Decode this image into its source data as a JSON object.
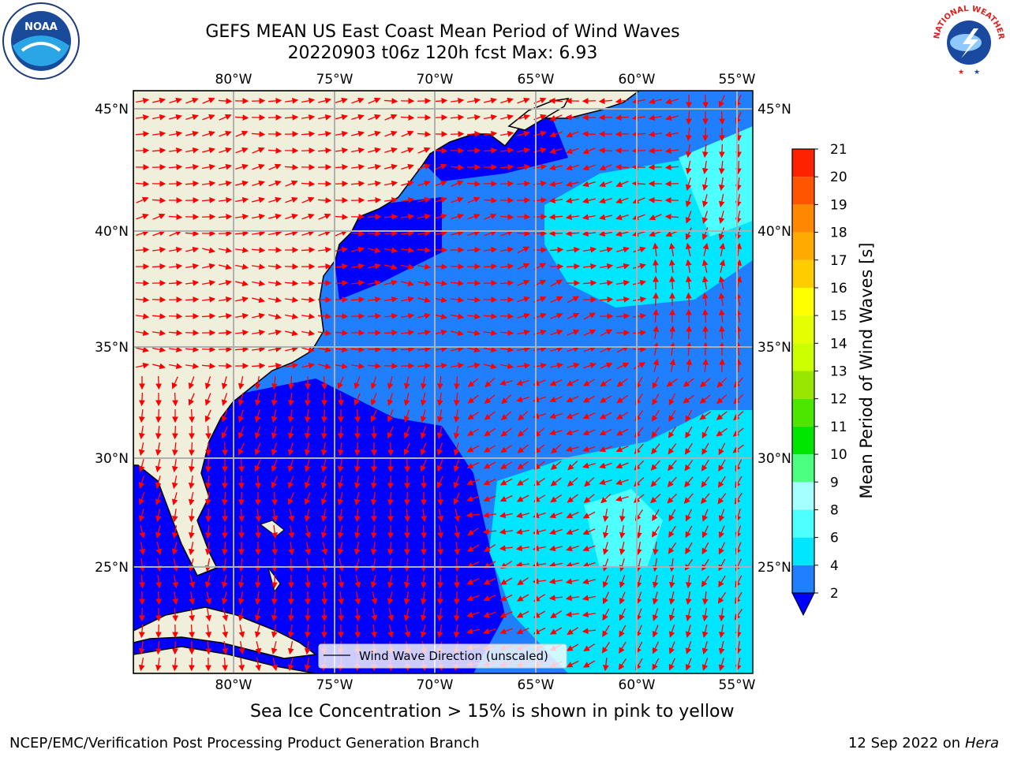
{
  "title_line1": "GEFS MEAN US East Coast Mean Period of Wind Waves",
  "title_line2": "20220903 t06z 120h fcst   Max: 6.93",
  "lon_labels": [
    "80°W",
    "75°W",
    "70°W",
    "65°W",
    "60°W",
    "55°W"
  ],
  "lat_labels": [
    "45°N",
    "40°N",
    "35°N",
    "30°N",
    "25°N"
  ],
  "legend_label": "Wind Wave Direction (unscaled)",
  "colorbar": {
    "label": "Mean Period of Wind Waves [s]",
    "ticks": [
      "2",
      "4",
      "6",
      "8",
      "9",
      "10",
      "11",
      "12",
      "13",
      "14",
      "15",
      "16",
      "17",
      "18",
      "19",
      "20",
      "21"
    ],
    "colors": [
      "#1f7fff",
      "#00e6ff",
      "#4dffff",
      "#a6ffff",
      "#4dff80",
      "#00e600",
      "#4de600",
      "#99e600",
      "#ccff00",
      "#e6ff00",
      "#ffff00",
      "#ffcc00",
      "#ffaa00",
      "#ff8800",
      "#ff5500",
      "#ff2200"
    ],
    "under_color": "#0000ff"
  },
  "caption": "Sea Ice Concentration > 15% is shown in pink to yellow",
  "footer_left": "NCEP/EMC/Verification Post Processing Product Generation Branch",
  "footer_right_date": "12 Sep 2022 on",
  "footer_right_host": "Hera",
  "logos": {
    "noaa": "NOAA",
    "nws": "NATIONAL WEATHER SERVICE"
  }
}
